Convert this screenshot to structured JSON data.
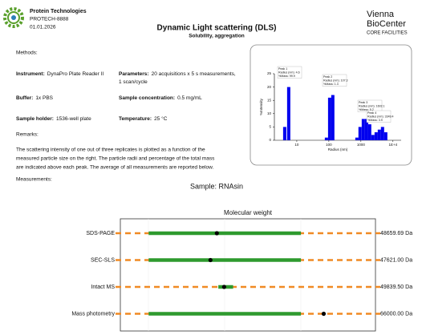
{
  "header": {
    "company": "Protein Technologies",
    "id": "PROTECH-8888",
    "date": "01.01.2026",
    "title": "Dynamic Light scattering (DLS)",
    "subtitle": "Solubility, aggregation",
    "logo": [
      "Vienna",
      "BioCenter",
      "CORE FACILITIES"
    ]
  },
  "methods": {
    "heading": "Methods:",
    "fields": [
      {
        "label": "Instrument:",
        "value": [
          "DynaPro Plate Reader II"
        ]
      },
      {
        "label": "Parameters:",
        "value": [
          "20 acquisitions x 5 s measurements,",
          "1 scan/cycle"
        ]
      },
      {
        "label": "Buffer:",
        "value": [
          "1x PBS"
        ]
      },
      {
        "label": "Sample concentration:",
        "value": [
          "0.5 mg/mL"
        ]
      },
      {
        "label": "Sample holder:",
        "value": [
          "1536-well plate"
        ]
      },
      {
        "label": "Temperature:",
        "value": [
          "25 °C"
        ]
      }
    ]
  },
  "remarks": {
    "heading": "Remarks:",
    "lines": [
      "The scattering intensity of one out of three replicates is plotted as a function of the",
      "measured particle size on the right. The particle radii and percentage of the total mass",
      "are indicated above each peak. The average of all measurements are reported below."
    ]
  },
  "measurements": {
    "heading": "Measurements:",
    "sample": "Sample: RNAsin"
  },
  "chart_data": [
    {
      "type": "bar",
      "x_label": "Radius (nm)",
      "y_label": "%Intensity",
      "xscale": "log",
      "color": "#0000ee",
      "x": [
        4.2,
        5.6,
        84,
        106,
        133,
        750,
        940,
        1190,
        1500,
        1880,
        2370,
        2990,
        3760,
        4730,
        5960
      ],
      "values": [
        5,
        20,
        1,
        16,
        17,
        1,
        5,
        8,
        8,
        6,
        2,
        3,
        4,
        5,
        3
      ],
      "xlim": [
        2,
        18000
      ],
      "xticks": [
        10,
        100,
        1000,
        {
          "value": 10000,
          "label": "1E+4"
        }
      ],
      "ylim": [
        0,
        25
      ],
      "yticks": [
        0,
        5,
        10,
        15,
        20,
        25
      ],
      "annotations": [
        [
          "Peak 1",
          "Radius (nm): 4.6",
          "%Mass: 99.9"
        ],
        [
          "Peak 2",
          "Radius (nm): 107.3",
          "%Mass: 1.3"
        ],
        [
          "Peak 3",
          "Radius (nm): 1602.1",
          "%Mass: 5.2"
        ],
        [
          "Peak 4",
          "Radius (nm): 3349.4",
          "%Mass: 3.9"
        ]
      ]
    },
    {
      "type": "dot_range",
      "title": "Molecular weight",
      "categories": [
        "SDS-PAGE",
        "SEC-SLS",
        "Intact MS",
        "Mass photometry"
      ],
      "values": [
        48659.69,
        47621.0,
        49839.5,
        66000.0
      ],
      "value_labels": [
        "48659.69 Da",
        "47621.00 Da",
        "49839.50 Da",
        "66000.00 Da"
      ],
      "low": [
        37600,
        37600,
        48900,
        37600
      ],
      "high": [
        62300,
        62300,
        51300,
        62300
      ],
      "xlim": [
        33000,
        74400
      ],
      "color": "#2e9a2e",
      "line_color": "#f08a24",
      "dot_color": "#000000"
    }
  ]
}
